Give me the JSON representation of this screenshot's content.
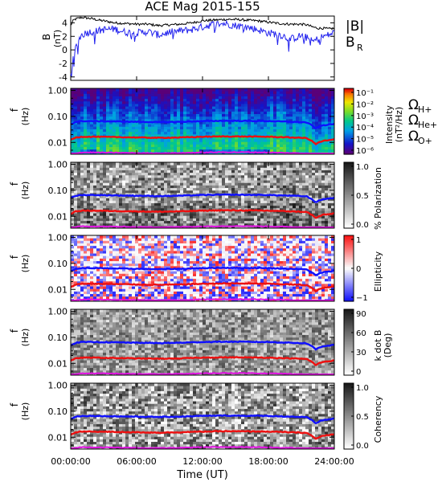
{
  "title": "ACE Mag 2015-155",
  "xlabel": "Time (UT)",
  "xticks": [
    "00:00:00",
    "06:00:00",
    "12:00:00",
    "18:00:00",
    "24:00:00"
  ],
  "colors": {
    "bmag": "#000000",
    "br": "#2222ee",
    "h": "#1010ff",
    "he": "#ee1010",
    "o": "#e010e0"
  },
  "legend_top": {
    "bmag": "|B|",
    "br_main": "B",
    "br_sub": "R"
  },
  "legend_gyro": {
    "h": {
      "main": "Ω",
      "sub": "H+"
    },
    "he": {
      "main": "Ω",
      "sub": "He+"
    },
    "o": {
      "main": "Ω",
      "sub": "O+"
    }
  },
  "chart_data": [
    {
      "type": "line",
      "ylabel_main": "B",
      "ylabel_unit": "(nT)",
      "x_hours": [
        0,
        0.25,
        0.5,
        0.75,
        1,
        1.5,
        2,
        2.5,
        3,
        4,
        5,
        6,
        7,
        8,
        9,
        10,
        11,
        12,
        13,
        14,
        15,
        16,
        17,
        18,
        19,
        20,
        21,
        21.5,
        22,
        22.5,
        23,
        23.5,
        24
      ],
      "series": [
        {
          "name": "|B|",
          "values": [
            3.6,
            4.4,
            4.6,
            4.7,
            4.8,
            4.7,
            4.6,
            4.4,
            4.3,
            4.0,
            3.9,
            3.8,
            3.8,
            3.6,
            3.7,
            3.8,
            4.0,
            4.3,
            4.4,
            4.5,
            4.5,
            4.4,
            4.3,
            4.1,
            3.9,
            3.8,
            3.8,
            3.7,
            3.4,
            3.2,
            3.2,
            3.1,
            3.2
          ]
        },
        {
          "name": "B_R",
          "values": [
            -3.5,
            -1.2,
            0.5,
            1.6,
            2.2,
            2.6,
            2.7,
            2.8,
            3.0,
            3.1,
            2.6,
            2.5,
            2.7,
            2.2,
            2.6,
            2.8,
            3.0,
            3.4,
            3.8,
            3.9,
            3.6,
            3.4,
            3.0,
            2.5,
            2.3,
            1.6,
            2.1,
            1.8,
            1.2,
            1.6,
            2.0,
            2.2,
            2.6
          ]
        }
      ],
      "ylim": [
        -4.5,
        5
      ],
      "yticks": [
        -4,
        -2,
        0,
        2,
        4
      ]
    },
    {
      "type": "heatmap",
      "ylabel_main": "f",
      "ylabel_unit": "(Hz)",
      "yticks": [
        "0.01",
        "0.10",
        "1.00"
      ],
      "ylog": true,
      "ylim": [
        0.0035,
        1.2
      ],
      "quantity": "intensity",
      "colorbar": {
        "labels": [
          "10⁻¹",
          "10⁻²",
          "10⁻³",
          "10⁻⁴",
          "10⁻⁵",
          "10⁻⁶"
        ],
        "title": "Intensity",
        "unit": "(nT²/Hz)"
      }
    },
    {
      "type": "heatmap",
      "ylabel_main": "f",
      "ylabel_unit": "(Hz)",
      "yticks": [
        "0.01",
        "0.10",
        "1.00"
      ],
      "ylog": true,
      "ylim": [
        0.0035,
        1.2
      ],
      "quantity": "polarization",
      "colorbar": {
        "labels": [
          "1.0",
          "0.5",
          "0.0"
        ],
        "title": "% Polarization",
        "unit": ""
      }
    },
    {
      "type": "heatmap",
      "ylabel_main": "f",
      "ylabel_unit": "(Hz)",
      "yticks": [
        "0.01",
        "0.10",
        "1.00"
      ],
      "ylog": true,
      "ylim": [
        0.0035,
        1.2
      ],
      "quantity": "ellipticity",
      "colorbar": {
        "labels": [
          "1",
          "0",
          "−1"
        ],
        "title": "Ellipticity",
        "unit": ""
      }
    },
    {
      "type": "heatmap",
      "ylabel_main": "f",
      "ylabel_unit": "(Hz)",
      "yticks": [
        "0.01",
        "0.10",
        "1.00"
      ],
      "ylog": true,
      "ylim": [
        0.0035,
        1.2
      ],
      "quantity": "kdotb",
      "colorbar": {
        "labels": [
          "90",
          "60",
          "30",
          "0"
        ],
        "title": "k dot B",
        "unit": "(Deg)"
      }
    },
    {
      "type": "heatmap",
      "ylabel_main": "f",
      "ylabel_unit": "(Hz)",
      "yticks": [
        "0.01",
        "0.10",
        "1.00"
      ],
      "ylog": true,
      "ylim": [
        0.0035,
        1.2
      ],
      "quantity": "coherency",
      "colorbar": {
        "labels": [
          "1.0",
          "0.5",
          "0.0"
        ],
        "title": "Coherency",
        "unit": ""
      }
    }
  ],
  "gyro_lines": {
    "x_hours": [
      0,
      0.5,
      1,
      2,
      4,
      6,
      8,
      10,
      12,
      14,
      16,
      18,
      20,
      21,
      21.5,
      22,
      22.3,
      22.6,
      23,
      23.5,
      24
    ],
    "h_hz": [
      0.05,
      0.062,
      0.066,
      0.066,
      0.064,
      0.062,
      0.06,
      0.062,
      0.066,
      0.068,
      0.067,
      0.066,
      0.062,
      0.06,
      0.058,
      0.044,
      0.034,
      0.04,
      0.046,
      0.048,
      0.052
    ],
    "he_hz": [
      0.0125,
      0.0155,
      0.0165,
      0.0165,
      0.016,
      0.0155,
      0.015,
      0.0155,
      0.0165,
      0.017,
      0.0168,
      0.0165,
      0.0155,
      0.015,
      0.0145,
      0.011,
      0.0085,
      0.01,
      0.0115,
      0.012,
      0.013
    ],
    "o_hz": [
      0.0031,
      0.0039,
      0.0041,
      0.0041,
      0.004,
      0.0039,
      0.0038,
      0.0039,
      0.0041,
      0.0042,
      0.0042,
      0.0041,
      0.0039,
      0.0038,
      0.0036,
      0.0028,
      0.0021,
      0.0025,
      0.0029,
      0.003,
      0.0033
    ]
  }
}
